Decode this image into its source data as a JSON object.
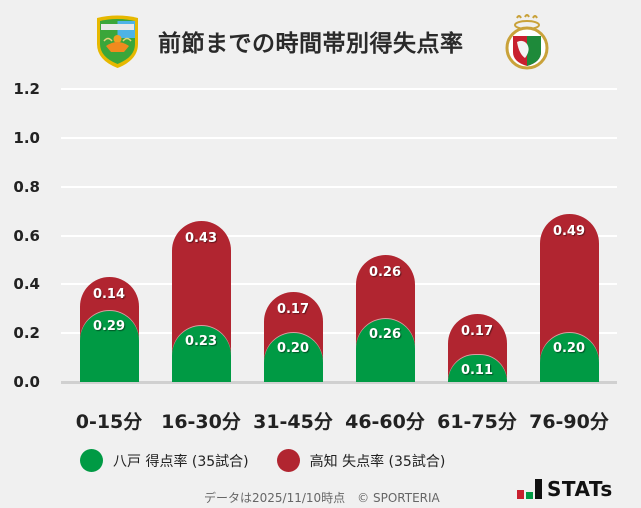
{
  "header": {
    "title": "前節までの時間帯別得失点率",
    "left_crest": "vanraure-hachinohe-crest-icon",
    "right_crest": "kochi-united-crest-icon"
  },
  "chart_data": {
    "type": "bar",
    "stacked": true,
    "title": "前節までの時間帯別得失点率",
    "xlabel": "",
    "ylabel": "",
    "ylim": [
      0,
      1.2
    ],
    "yticks": [
      "1.2",
      "1.0",
      "0.8",
      "0.6",
      "0.4",
      "0.2",
      "0.0"
    ],
    "grid": true,
    "legend_position": "bottom",
    "categories": [
      "0-15分",
      "16-30分",
      "31-45分",
      "46-60分",
      "61-75分",
      "76-90分"
    ],
    "series": [
      {
        "name": "八戸 得点率 (35試合)",
        "color": "#009a44",
        "values": [
          0.29,
          0.23,
          0.2,
          0.26,
          0.11,
          0.2
        ]
      },
      {
        "name": "高知 失点率 (35試合)",
        "color": "#b12530",
        "values": [
          0.14,
          0.43,
          0.17,
          0.26,
          0.17,
          0.49
        ]
      }
    ]
  },
  "labels": {
    "green": [
      "0.29",
      "0.23",
      "0.20",
      "0.26",
      "0.11",
      "0.20"
    ],
    "red": [
      "0.14",
      "0.43",
      "0.17",
      "0.26",
      "0.17",
      "0.49"
    ]
  },
  "legend": {
    "items": [
      {
        "label": "八戸 得点率 (35試合)",
        "color": "#009a44"
      },
      {
        "label": "高知 失点率 (35試合)",
        "color": "#b12530"
      }
    ]
  },
  "footer": {
    "note": "データは2025/11/10時点　© SPORTERIA",
    "logo_text": "STATs"
  }
}
